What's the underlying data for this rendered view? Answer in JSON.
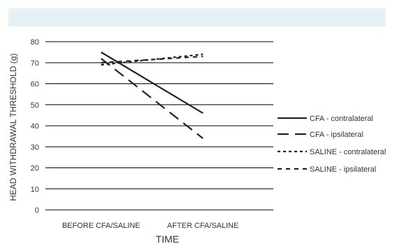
{
  "chart_data": {
    "type": "line",
    "categories": [
      "BEFORE CFA/SALINE",
      "AFTER CFA/SALINE"
    ],
    "xlabel": "TIME",
    "ylabel": "HEAD WITHDRAWAL THRESHOLD (g)",
    "ylim": [
      0,
      80
    ],
    "yticks": [
      0,
      10,
      20,
      30,
      40,
      50,
      60,
      70,
      80
    ],
    "grid": true,
    "legend_position": "right",
    "series": [
      {
        "name": "CFA - contralateral",
        "values": [
          75,
          46
        ],
        "dash": "solid"
      },
      {
        "name": "CFA - ipsilateral",
        "values": [
          72,
          34
        ],
        "dash": "long-dash"
      },
      {
        "name": "SALINE - contralateral",
        "values": [
          69,
          74
        ],
        "dash": "dotted"
      },
      {
        "name": "SALINE - ipsilateral",
        "values": [
          70,
          73
        ],
        "dash": "short-dash"
      }
    ],
    "colors": {
      "line": "#222222",
      "grid": "#000000",
      "header": "#e6f1f5"
    }
  }
}
